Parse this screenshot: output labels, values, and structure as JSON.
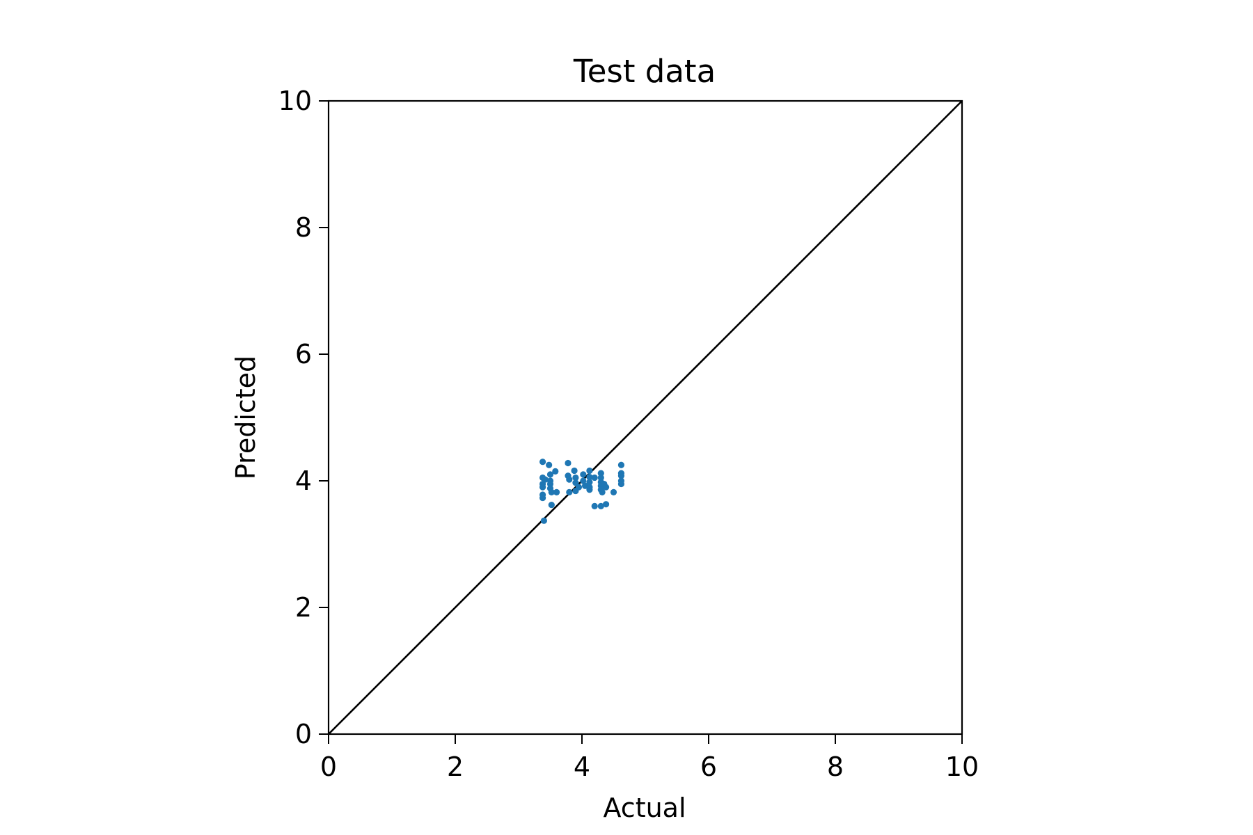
{
  "chart_data": {
    "type": "scatter",
    "title": "Test data",
    "xlabel": "Actual",
    "ylabel": "Predicted",
    "xlim": [
      0,
      10
    ],
    "ylim": [
      0,
      10
    ],
    "xticks": [
      "0",
      "2",
      "4",
      "6",
      "8",
      "10"
    ],
    "yticks": [
      "0",
      "2",
      "4",
      "6",
      "8",
      "10"
    ],
    "grid": false,
    "reference_line": {
      "from": [
        0,
        0
      ],
      "to": [
        10,
        10
      ],
      "color": "#000000"
    },
    "colors": {
      "points": "#1f77b4",
      "axes": "#000000"
    },
    "series": [
      {
        "points": [
          [
            3.38,
            4.3
          ],
          [
            3.38,
            4.05
          ],
          [
            3.38,
            3.95
          ],
          [
            3.38,
            3.9
          ],
          [
            3.38,
            3.78
          ],
          [
            3.38,
            3.73
          ],
          [
            3.4,
            3.37
          ],
          [
            3.42,
            4.02
          ],
          [
            3.48,
            4.25
          ],
          [
            3.5,
            4.1
          ],
          [
            3.5,
            4.0
          ],
          [
            3.5,
            3.95
          ],
          [
            3.5,
            3.88
          ],
          [
            3.52,
            3.82
          ],
          [
            3.52,
            3.62
          ],
          [
            3.58,
            4.15
          ],
          [
            3.6,
            3.82
          ],
          [
            3.78,
            4.28
          ],
          [
            3.78,
            4.08
          ],
          [
            3.8,
            4.02
          ],
          [
            3.8,
            3.82
          ],
          [
            3.88,
            4.16
          ],
          [
            3.9,
            4.05
          ],
          [
            3.9,
            3.97
          ],
          [
            3.9,
            3.84
          ],
          [
            3.95,
            3.9
          ],
          [
            4.02,
            4.1
          ],
          [
            4.02,
            4.0
          ],
          [
            4.05,
            3.92
          ],
          [
            4.12,
            4.16
          ],
          [
            4.12,
            4.06
          ],
          [
            4.12,
            3.98
          ],
          [
            4.12,
            3.9
          ],
          [
            4.12,
            3.86
          ],
          [
            4.2,
            4.05
          ],
          [
            4.2,
            3.6
          ],
          [
            4.3,
            4.12
          ],
          [
            4.3,
            4.05
          ],
          [
            4.3,
            3.98
          ],
          [
            4.3,
            3.92
          ],
          [
            4.3,
            3.86
          ],
          [
            4.32,
            3.82
          ],
          [
            4.3,
            3.6
          ],
          [
            4.35,
            3.95
          ],
          [
            4.38,
            3.9
          ],
          [
            4.38,
            3.63
          ],
          [
            4.5,
            3.82
          ],
          [
            4.62,
            4.25
          ],
          [
            4.62,
            4.12
          ],
          [
            4.62,
            4.08
          ],
          [
            4.62,
            4.0
          ],
          [
            4.62,
            3.95
          ]
        ]
      }
    ]
  }
}
